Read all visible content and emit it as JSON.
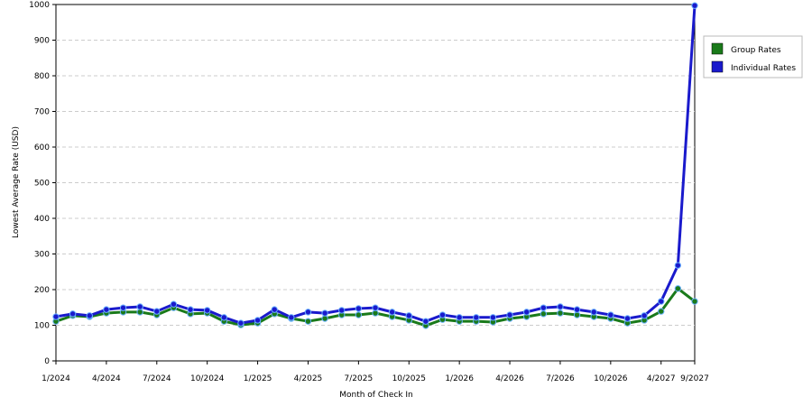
{
  "chart_data": {
    "type": "line",
    "x_label": "Month of Check In",
    "y_label": "Lowest Average Rate (USD)",
    "categories": [
      "1/2024",
      null,
      null,
      "4/2024",
      null,
      null,
      "7/2024",
      null,
      null,
      "10/2024",
      null,
      null,
      "1/2025",
      null,
      null,
      "4/2025",
      null,
      null,
      "7/2025",
      null,
      null,
      "10/2025",
      null,
      null,
      "1/2026",
      null,
      null,
      "4/2026",
      null,
      null,
      "7/2026",
      null,
      null,
      "10/2026",
      null,
      null,
      "4/2027",
      null,
      "9/2027"
    ],
    "series": [
      {
        "name": "Group Rates",
        "color": "#1a7a1a",
        "values": [
          111,
          127,
          124,
          134,
          137,
          137,
          129,
          149,
          132,
          134,
          111,
          101,
          106,
          132,
          119,
          111,
          119,
          129,
          129,
          134,
          124,
          114,
          99,
          116,
          111,
          111,
          109,
          119,
          124,
          132,
          134,
          129,
          124,
          119,
          106,
          114,
          139,
          203,
          167
        ]
      },
      {
        "name": "Individual Rates",
        "color": "#1a1acc",
        "values": [
          124,
          132,
          127,
          144,
          149,
          152,
          139,
          159,
          144,
          142,
          122,
          106,
          114,
          144,
          122,
          137,
          134,
          142,
          147,
          149,
          137,
          127,
          111,
          129,
          122,
          122,
          122,
          129,
          137,
          149,
          152,
          144,
          137,
          129,
          119,
          127,
          167,
          268,
          997
        ]
      }
    ],
    "ylim": [
      0,
      1000
    ],
    "yticks": [
      0,
      100,
      200,
      300,
      400,
      500,
      600,
      700,
      800,
      900,
      1000
    ],
    "grid": true,
    "legend": "right"
  }
}
